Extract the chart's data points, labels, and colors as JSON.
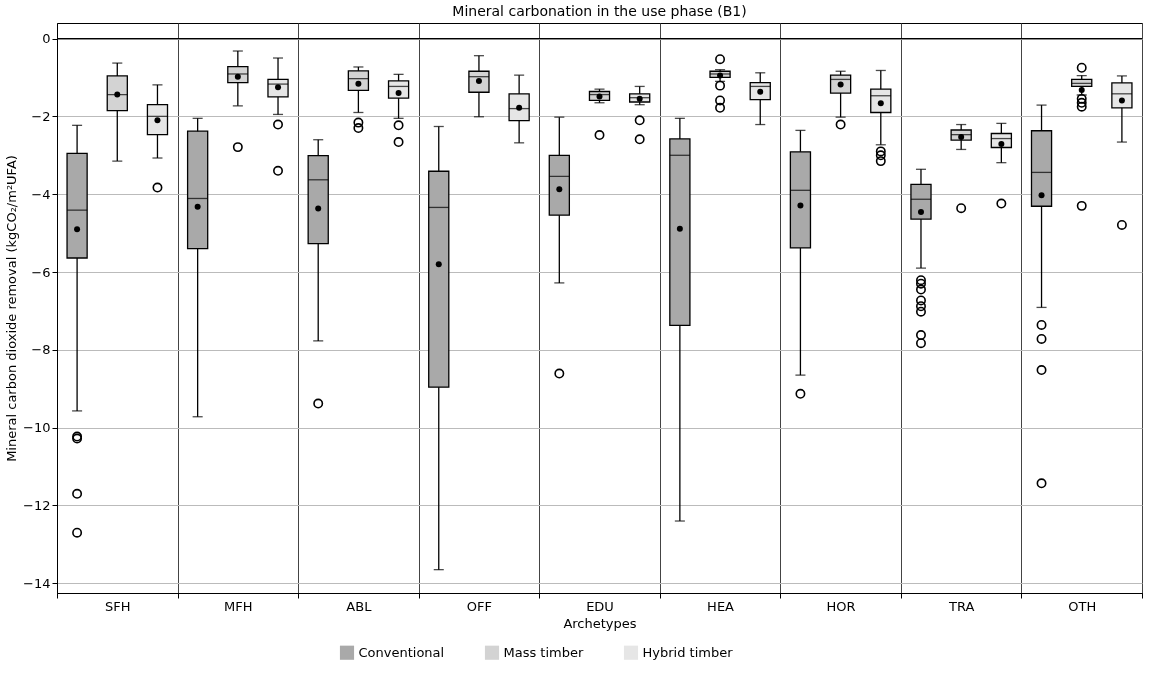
{
  "chart_data": {
    "type": "box",
    "title": "Mineral carbonation in the use phase (B1)",
    "xlabel": "Archetypes",
    "ylabel": "Mineral carbon dioxide removal (kgCO₂/m²UFA)",
    "categories": [
      "SFH",
      "MFH",
      "ABL",
      "OFF",
      "EDU",
      "HEA",
      "HOR",
      "TRA",
      "OTH"
    ],
    "ylim": [
      -14.25,
      0.4
    ],
    "yticks": [
      -14,
      -12,
      -10,
      -8,
      -6,
      -4,
      -2,
      0
    ],
    "grid": true,
    "legend": "bottom",
    "ref_lines": [
      {
        "axis": "y",
        "value": 0,
        "color": "#000000"
      }
    ],
    "series": [
      {
        "name": "Conventional",
        "color": "#a9a9a9",
        "boxes": [
          {
            "low": -9.57,
            "q1": -5.64,
            "median": -4.41,
            "q3": -2.95,
            "high": -2.23,
            "mean": -4.9,
            "outliers": [
              -10.23,
              -10.28,
              -11.7,
              -12.7
            ]
          },
          {
            "low": -9.72,
            "q1": -5.4,
            "median": -4.11,
            "q3": -2.38,
            "high": -2.05,
            "mean": -4.32
          },
          {
            "low": -7.77,
            "q1": -5.27,
            "median": -3.63,
            "q3": -3.01,
            "high": -2.6,
            "mean": -4.37,
            "outliers": [
              -9.38
            ]
          },
          {
            "low": -13.65,
            "q1": -8.96,
            "median": -4.34,
            "q3": -3.41,
            "high": -2.26,
            "mean": -5.8
          },
          {
            "low": -6.28,
            "q1": -4.54,
            "median": -3.54,
            "q3": -3.0,
            "high": -2.02,
            "mean": -3.87,
            "outliers": [
              -8.61
            ]
          },
          {
            "low": -12.4,
            "q1": -7.37,
            "median": -3.0,
            "q3": -2.58,
            "high": -2.05,
            "mean": -4.89
          },
          {
            "low": -8.65,
            "q1": -5.38,
            "median": -3.9,
            "q3": -2.91,
            "high": -2.36,
            "mean": -4.29,
            "outliers": [
              -9.13
            ]
          },
          {
            "low": -5.9,
            "q1": -4.64,
            "median": -4.13,
            "q3": -3.75,
            "high": -3.36,
            "mean": -4.46,
            "outliers": [
              -6.21,
              -6.3,
              -6.45,
              -6.73,
              -6.88,
              -7.02,
              -7.62,
              -7.83
            ]
          },
          {
            "low": -6.91,
            "q1": -4.31,
            "median": -3.44,
            "q3": -2.37,
            "high": -1.71,
            "mean": -4.03,
            "outliers": [
              -7.36,
              -7.72,
              -8.52,
              -11.43
            ]
          }
        ]
      },
      {
        "name": "Mass timber",
        "color": "#d3d3d3",
        "boxes": [
          {
            "low": -3.15,
            "q1": -1.85,
            "median": -1.44,
            "q3": -0.96,
            "high": -0.63,
            "mean": -1.44
          },
          {
            "low": -1.73,
            "q1": -1.13,
            "median": -0.91,
            "q3": -0.72,
            "high": -0.32,
            "mean": -0.98,
            "outliers": [
              -2.79
            ]
          },
          {
            "low": -1.9,
            "q1": -1.33,
            "median": -1.03,
            "q3": -0.83,
            "high": -0.73,
            "mean": -1.16,
            "outliers": [
              -2.16,
              -2.3
            ]
          },
          {
            "low": -2.01,
            "q1": -1.38,
            "median": -0.98,
            "q3": -0.84,
            "high": -0.44,
            "mean": -1.09
          },
          {
            "low": -1.65,
            "q1": -1.59,
            "median": -1.44,
            "q3": -1.36,
            "high": -1.3,
            "mean": -1.49,
            "outliers": [
              -2.48
            ]
          },
          {
            "low": -1.1,
            "q1": -1.0,
            "median": -0.91,
            "q3": -0.84,
            "high": -0.8,
            "mean": -0.95,
            "outliers": [
              -0.53,
              -1.21,
              -1.59,
              -1.78
            ]
          },
          {
            "low": -2.02,
            "q1": -1.4,
            "median": -1.05,
            "q3": -0.94,
            "high": -0.84,
            "mean": -1.18,
            "outliers": [
              -2.21
            ]
          },
          {
            "low": -2.85,
            "q1": -2.61,
            "median": -2.47,
            "q3": -2.35,
            "high": -2.21,
            "mean": -2.53,
            "outliers": [
              -4.36
            ]
          },
          {
            "low": -1.45,
            "q1": -1.23,
            "median": -1.15,
            "q3": -1.05,
            "high": -0.95,
            "mean": -1.32,
            "outliers": [
              -0.75,
              -1.55,
              -1.65,
              -1.75,
              -4.3
            ]
          }
        ]
      },
      {
        "name": "Hybrid timber",
        "color": "#e6e6e6",
        "boxes": [
          {
            "low": -3.07,
            "q1": -2.47,
            "median": -2.0,
            "q3": -1.7,
            "high": -1.19,
            "mean": -2.1,
            "outliers": [
              -3.83
            ]
          },
          {
            "low": -1.95,
            "q1": -1.5,
            "median": -1.17,
            "q3": -1.05,
            "high": -0.5,
            "mean": -1.25,
            "outliers": [
              -2.21,
              -3.4
            ]
          },
          {
            "low": -2.05,
            "q1": -1.53,
            "median": -1.23,
            "q3": -1.09,
            "high": -0.92,
            "mean": -1.4,
            "outliers": [
              -2.23,
              -2.66
            ]
          },
          {
            "low": -2.68,
            "q1": -2.11,
            "median": -1.8,
            "q3": -1.42,
            "high": -0.94,
            "mean": -1.78
          },
          {
            "low": -1.7,
            "q1": -1.63,
            "median": -1.52,
            "q3": -1.42,
            "high": -1.23,
            "mean": -1.55,
            "outliers": [
              -2.1,
              -2.59
            ]
          },
          {
            "low": -2.21,
            "q1": -1.57,
            "median": -1.23,
            "q3": -1.13,
            "high": -0.88,
            "mean": -1.37
          },
          {
            "low": -2.73,
            "q1": -1.9,
            "median": -1.47,
            "q3": -1.3,
            "high": -0.82,
            "mean": -1.66,
            "outliers": [
              -2.9,
              -3.0,
              -3.15
            ]
          },
          {
            "low": -3.19,
            "q1": -2.8,
            "median": -2.57,
            "q3": -2.44,
            "high": -2.18,
            "mean": -2.71,
            "outliers": [
              -4.24
            ]
          },
          {
            "low": -2.66,
            "q1": -1.78,
            "median": -1.42,
            "q3": -1.14,
            "high": -0.96,
            "mean": -1.59,
            "outliers": [
              -4.79
            ]
          }
        ]
      }
    ]
  }
}
